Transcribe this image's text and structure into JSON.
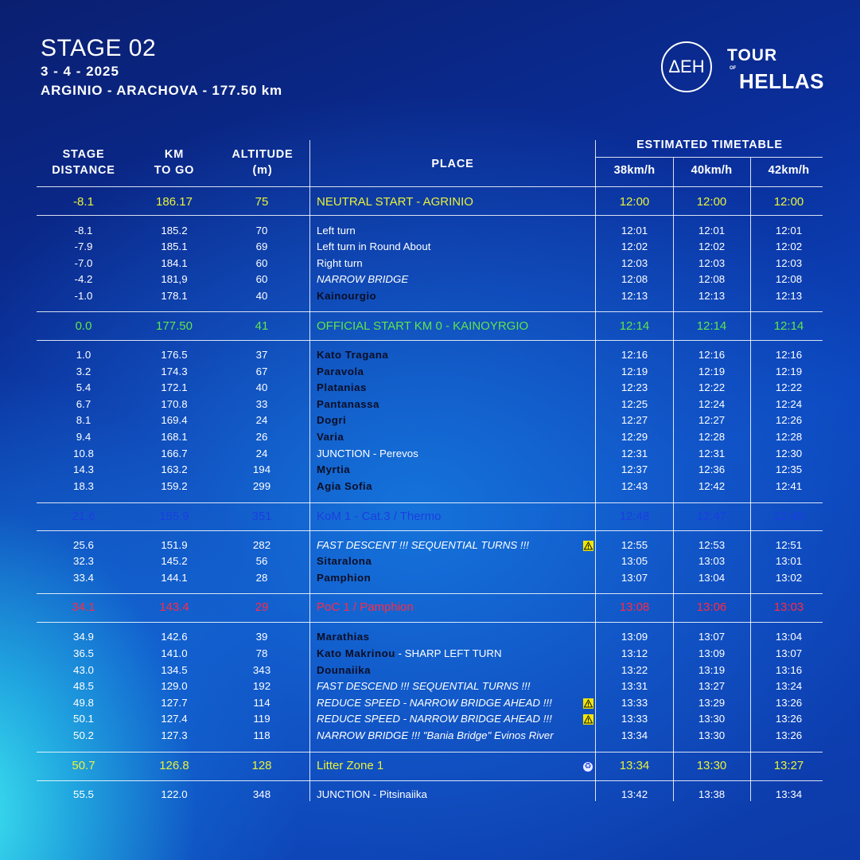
{
  "header": {
    "title": "STAGE 02",
    "date": "3 - 4 - 2025",
    "route": "ARGINIO - ARACHOVA - 177.50 km"
  },
  "logo": {
    "deh": "ΔEH",
    "tour": "TOUR",
    "of": "OF",
    "hellas": "HELLAS"
  },
  "table_header": {
    "stage_distance": [
      "STAGE",
      "DISTANCE"
    ],
    "km_to_go": [
      "KM",
      "TO GO"
    ],
    "altitude": [
      "ALTITUDE",
      "(m)"
    ],
    "place": "PLACE",
    "estimated": "ESTIMATED TIMETABLE",
    "speeds": [
      "38km/h",
      "40km/h",
      "42km/h"
    ]
  },
  "colors": {
    "yellow": "#e9f23a",
    "green": "#5fe54a",
    "blue": "#1a3fe0",
    "red": "#ff2a45",
    "dark_text": "#0b0e24"
  },
  "rows": [
    {
      "dist": "-8.1",
      "km": "186.17",
      "alt": "75",
      "place": "NEUTRAL START - AGRINIO",
      "t38": "12:00",
      "t40": "12:00",
      "t42": "12:00",
      "style": "hl",
      "color": "yellow"
    },
    {
      "dist": "-8.1",
      "km": "185.2",
      "alt": "70",
      "place": "Left turn",
      "t38": "12:01",
      "t40": "12:01",
      "t42": "12:01",
      "style": "normal"
    },
    {
      "dist": "-7.9",
      "km": "185.1",
      "alt": "69",
      "place": "Left turn in Round About",
      "t38": "12:02",
      "t40": "12:02",
      "t42": "12:02",
      "style": "normal"
    },
    {
      "dist": "-7.0",
      "km": "184.1",
      "alt": "60",
      "place": "Right turn",
      "t38": "12:03",
      "t40": "12:03",
      "t42": "12:03",
      "style": "normal"
    },
    {
      "dist": "-4.2",
      "km": "181,9",
      "alt": "60",
      "place": "NARROW BRIDGE",
      "t38": "12:08",
      "t40": "12:08",
      "t42": "12:08",
      "style": "italic"
    },
    {
      "dist": "-1.0",
      "km": "178.1",
      "alt": "40",
      "place": "Kainourgio",
      "t38": "12:13",
      "t40": "12:13",
      "t42": "12:13",
      "style": "bold"
    },
    {
      "dist": "0.0",
      "km": "177.50",
      "alt": "41",
      "place": "OFFICIAL START KM 0 - KAINOYRGIO",
      "t38": "12:14",
      "t40": "12:14",
      "t42": "12:14",
      "style": "hl",
      "color": "green"
    },
    {
      "dist": "1.0",
      "km": "176.5",
      "alt": "37",
      "place": "Kato Tragana",
      "t38": "12:16",
      "t40": "12:16",
      "t42": "12:16",
      "style": "bold"
    },
    {
      "dist": "3.2",
      "km": "174.3",
      "alt": "67",
      "place": "Paravola",
      "t38": "12:19",
      "t40": "12:19",
      "t42": "12:19",
      "style": "bold"
    },
    {
      "dist": "5.4",
      "km": "172.1",
      "alt": "40",
      "place": "Platanias",
      "t38": "12:23",
      "t40": "12:22",
      "t42": "12:22",
      "style": "bold"
    },
    {
      "dist": "6.7",
      "km": "170.8",
      "alt": "33",
      "place": "Pantanassa",
      "t38": "12:25",
      "t40": "12:24",
      "t42": "12:24",
      "style": "bold"
    },
    {
      "dist": "8.1",
      "km": "169.4",
      "alt": "24",
      "place": "Dogri",
      "t38": "12:27",
      "t40": "12:27",
      "t42": "12:26",
      "style": "bold"
    },
    {
      "dist": "9.4",
      "km": "168.1",
      "alt": "26",
      "place": "Varia",
      "t38": "12:29",
      "t40": "12:28",
      "t42": "12:28",
      "style": "bold"
    },
    {
      "dist": "10.8",
      "km": "166.7",
      "alt": "24",
      "place": "JUNCTION - Perevos",
      "t38": "12:31",
      "t40": "12:31",
      "t42": "12:30",
      "style": "normal"
    },
    {
      "dist": "14.3",
      "km": "163.2",
      "alt": "194",
      "place": "Myrtia",
      "t38": "12:37",
      "t40": "12:36",
      "t42": "12:35",
      "style": "bold"
    },
    {
      "dist": "18.3",
      "km": "159.2",
      "alt": "299",
      "place": "Agia Sofia",
      "t38": "12:43",
      "t40": "12:42",
      "t42": "12:41",
      "style": "bold"
    },
    {
      "dist": "21.6",
      "km": "155.9",
      "alt": "351",
      "place": "KoM 1 - Cat.3 / Thermo",
      "t38": "12:48",
      "t40": "12:47",
      "t42": "12:45",
      "style": "hl",
      "color": "blue"
    },
    {
      "dist": "25.6",
      "km": "151.9",
      "alt": "282",
      "place": "FAST DESCENT !!! SEQUENTIAL TURNS !!!",
      "t38": "12:55",
      "t40": "12:53",
      "t42": "12:51",
      "style": "italic",
      "icon": "warning-icon"
    },
    {
      "dist": "32.3",
      "km": "145.2",
      "alt": "56",
      "place": "Sitaralona",
      "t38": "13:05",
      "t40": "13:03",
      "t42": "13:01",
      "style": "bold"
    },
    {
      "dist": "33.4",
      "km": "144.1",
      "alt": "28",
      "place": "Pamphion",
      "t38": "13:07",
      "t40": "13:04",
      "t42": "13:02",
      "style": "bold"
    },
    {
      "dist": "34.1",
      "km": "143.4",
      "alt": "29",
      "place": "PoC 1 / Pamphion",
      "t38": "13:08",
      "t40": "13:06",
      "t42": "13:03",
      "style": "hl",
      "color": "red"
    },
    {
      "dist": "34.9",
      "km": "142.6",
      "alt": "39",
      "place": "Marathias",
      "t38": "13:09",
      "t40": "13:07",
      "t42": "13:04",
      "style": "bold"
    },
    {
      "dist": "36.5",
      "km": "141.0",
      "alt": "78",
      "place": "Kato Makrinou",
      "place_suffix": " - SHARP LEFT TURN",
      "t38": "13:12",
      "t40": "13:09",
      "t42": "13:07",
      "style": "bold"
    },
    {
      "dist": "43.0",
      "km": "134.5",
      "alt": "343",
      "place": "Dounaiika",
      "t38": "13:22",
      "t40": "13:19",
      "t42": "13:16",
      "style": "bold"
    },
    {
      "dist": "48.5",
      "km": "129.0",
      "alt": "192",
      "place": "FAST DESCEND !!! SEQUENTIAL TURNS !!!",
      "t38": "13:31",
      "t40": "13:27",
      "t42": "13:24",
      "style": "italic"
    },
    {
      "dist": "49.8",
      "km": "127.7",
      "alt": "114",
      "place": "REDUCE SPEED - NARROW BRIDGE AHEAD !!!",
      "t38": "13:33",
      "t40": "13:29",
      "t42": "13:26",
      "style": "italic",
      "icon": "warning-icon"
    },
    {
      "dist": "50.1",
      "km": "127.4",
      "alt": "119",
      "place": "REDUCE SPEED - NARROW BRIDGE AHEAD !!!",
      "t38": "13:33",
      "t40": "13:30",
      "t42": "13:26",
      "style": "italic",
      "icon": "warning-icon"
    },
    {
      "dist": "50.2",
      "km": "127.3",
      "alt": "118",
      "place": "NARROW BRIDGE !!! \"Bania Bridge\" Evinos River",
      "t38": "13:34",
      "t40": "13:30",
      "t42": "13:26",
      "style": "italic"
    },
    {
      "dist": "50.7",
      "km": "126.8",
      "alt": "128",
      "place": "Litter Zone 1",
      "t38": "13:34",
      "t40": "13:30",
      "t42": "13:27",
      "style": "hl",
      "color": "yellow",
      "icon": "recycle-icon"
    },
    {
      "dist": "55.5",
      "km": "122.0",
      "alt": "348",
      "place": "JUNCTION - Pitsinaiika",
      "t38": "13:42",
      "t40": "13:38",
      "t42": "13:34",
      "style": "normal"
    }
  ]
}
